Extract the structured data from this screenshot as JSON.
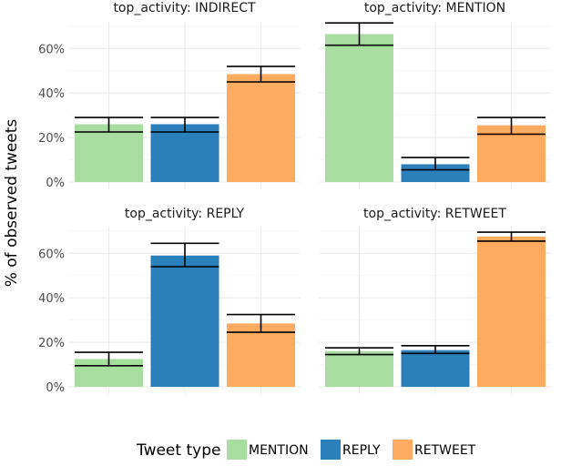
{
  "chart_data": {
    "type": "bar",
    "ylabel": "% of observed tweets",
    "ylim": [
      0,
      72
    ],
    "yticks": [
      0,
      20,
      40,
      60
    ],
    "ytick_labels": [
      "0%",
      "20%",
      "40%",
      "60%"
    ],
    "grid": true,
    "legend": {
      "title": "Tweet type",
      "placement": "bottom",
      "entries": [
        "MENTION",
        "REPLY",
        "RETWEET"
      ]
    },
    "categories": [
      "MENTION",
      "REPLY",
      "RETWEET"
    ],
    "colors": {
      "MENTION": "#a8dda0",
      "REPLY": "#2b7fbb",
      "RETWEET": "#fdab60"
    },
    "panels": [
      {
        "title": "top_activity: INDIRECT",
        "values": [
          26,
          26,
          48.5
        ],
        "err_low": [
          22.5,
          22.5,
          45
        ],
        "err_high": [
          29,
          29,
          52
        ]
      },
      {
        "title": "top_activity: MENTION",
        "values": [
          66.5,
          8,
          25.5
        ],
        "err_low": [
          61.5,
          5.5,
          21.5
        ],
        "err_high": [
          71.5,
          11,
          29
        ]
      },
      {
        "title": "top_activity: REPLY",
        "values": [
          12.5,
          59,
          28.5
        ],
        "err_low": [
          9.5,
          54,
          24.5
        ],
        "err_high": [
          15.5,
          64.5,
          32.5
        ]
      },
      {
        "title": "top_activity: RETWEET",
        "values": [
          16,
          16.5,
          67.5
        ],
        "err_low": [
          14.5,
          15,
          65.5
        ],
        "err_high": [
          17.5,
          18.5,
          69.5
        ]
      }
    ]
  }
}
